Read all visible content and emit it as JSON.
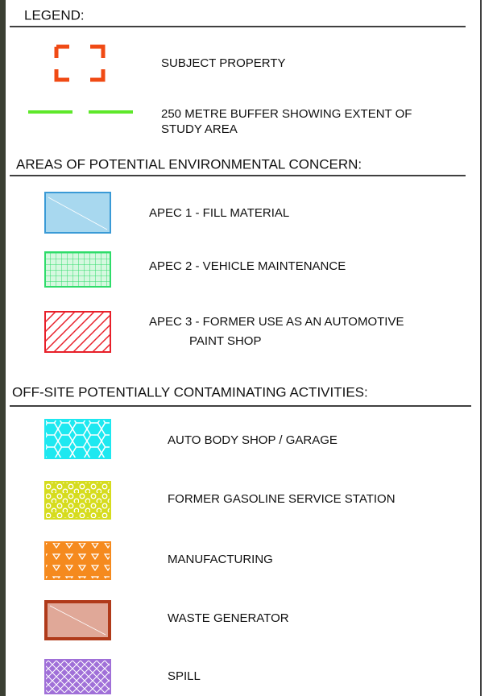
{
  "legend": {
    "title": "LEGEND:",
    "items": [
      {
        "label": "SUBJECT PROPERTY"
      },
      {
        "label_lines": [
          "250 METRE BUFFER SHOWING EXTENT OF",
          "STUDY AREA"
        ]
      }
    ]
  },
  "apec": {
    "title": "AREAS OF POTENTIAL ENVIRONMENTAL CONCERN:",
    "items": [
      {
        "label": "APEC 1 - FILL MATERIAL"
      },
      {
        "label": "APEC 2 -  VEHICLE MAINTENANCE"
      },
      {
        "label_lines": [
          "APEC 3 - FORMER USE AS AN AUTOMOTIVE",
          "PAINT SHOP"
        ]
      }
    ]
  },
  "offsite": {
    "title": "OFF-SITE POTENTIALLY CONTAMINATING ACTIVITIES:",
    "items": [
      {
        "label": "AUTO BODY SHOP / GARAGE"
      },
      {
        "label": "FORMER GASOLINE SERVICE STATION"
      },
      {
        "label": "MANUFACTURING"
      },
      {
        "label": "WASTE GENERATOR"
      },
      {
        "label": "SPILL"
      }
    ]
  }
}
